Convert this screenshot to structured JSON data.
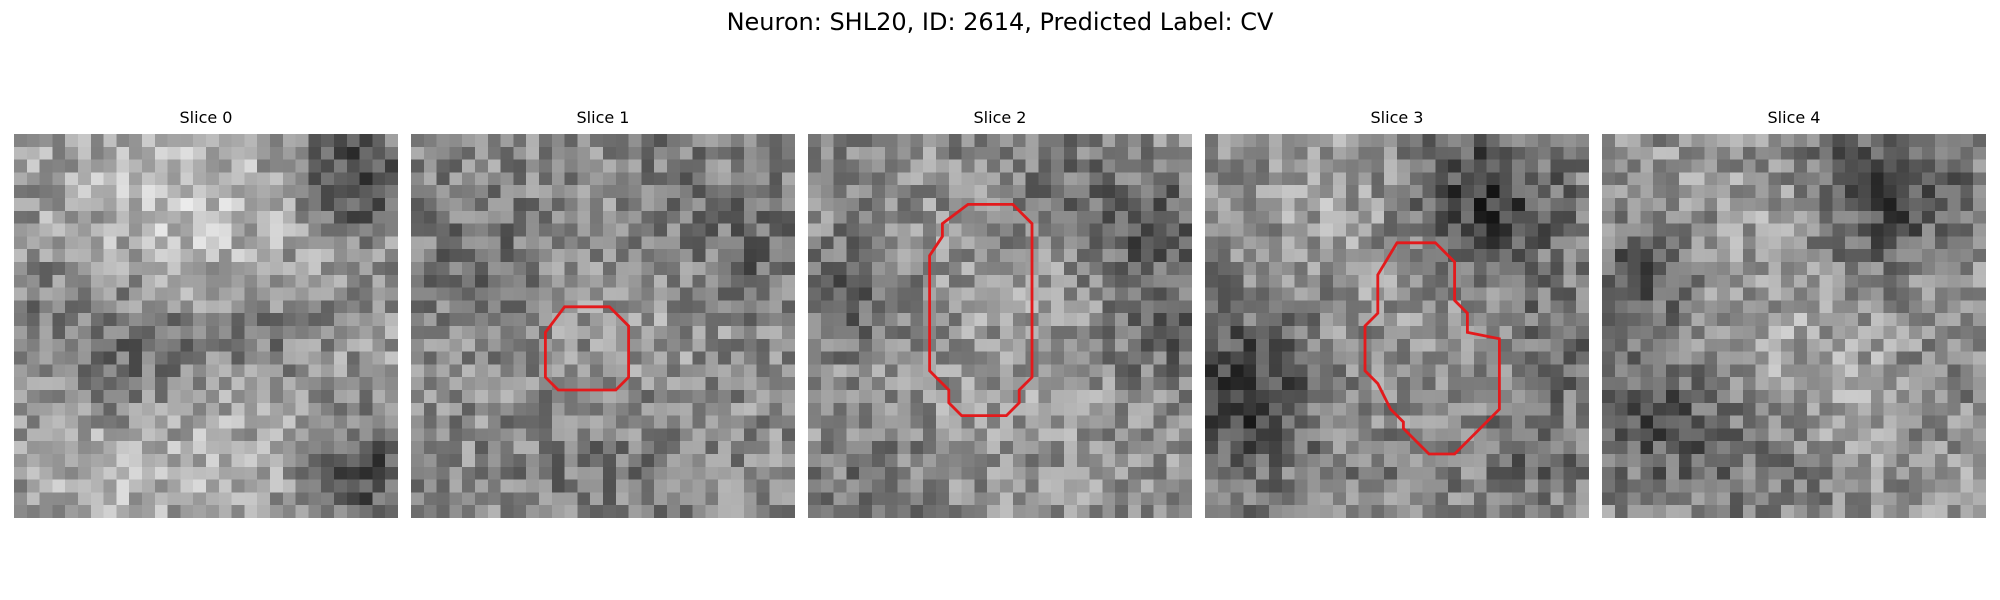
{
  "figure": {
    "title": "Neuron: SHL20, ID: 2614, Predicted Label: CV",
    "contour_color": "#e31a1c",
    "colormap": "grayscale"
  },
  "slices": [
    {
      "title": "Slice 0",
      "has_contour": false
    },
    {
      "title": "Slice 1",
      "has_contour": true
    },
    {
      "title": "Slice 2",
      "has_contour": true
    },
    {
      "title": "Slice 3",
      "has_contour": true
    },
    {
      "title": "Slice 4",
      "has_contour": false
    }
  ]
}
